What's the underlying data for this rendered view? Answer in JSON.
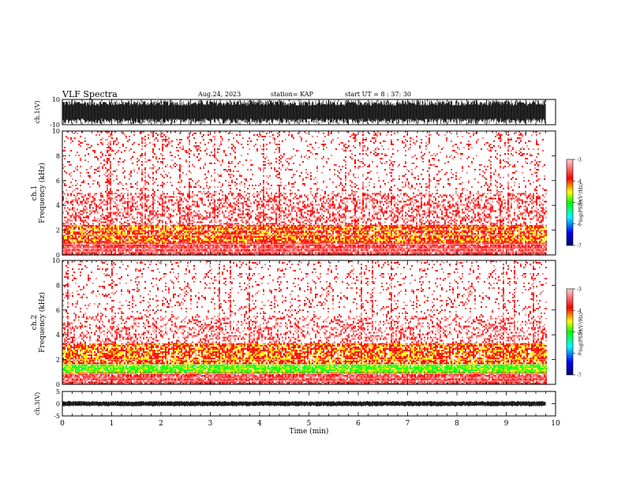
{
  "header": {
    "title": "VLF Spectra",
    "date": "Aug.24, 2023",
    "station": "station= KAP",
    "start": "start  UT =  8 : 37: 30"
  },
  "chart_data": [
    {
      "type": "line",
      "panel": "ch1-waveform",
      "ylabel": "ch.1(V)",
      "ylim": [
        -10,
        10
      ],
      "yticks": [
        "10",
        "-10"
      ],
      "xlim": [
        0,
        10
      ],
      "data_end_min": 9.8,
      "style": "dense black waveform filling most of the range"
    },
    {
      "type": "heatmap",
      "panel": "ch1-spectrogram",
      "ylabel": "ch.1\nFrequency  (kHz)",
      "ylim": [
        0,
        10
      ],
      "yticks": [
        "0",
        "2",
        "4",
        "6",
        "8",
        "10"
      ],
      "xlim": [
        0,
        10
      ],
      "data_end_min": 9.8,
      "bands": [
        {
          "from": 0.0,
          "to": 1.1,
          "level": "red",
          "density": 0.9
        },
        {
          "from": 1.1,
          "to": 2.4,
          "level": "red-yellow",
          "density": 0.85
        },
        {
          "from": 2.4,
          "to": 5.0,
          "level": "red",
          "density": 0.35
        },
        {
          "from": 5.0,
          "to": 10.0,
          "level": "red",
          "density": 0.12
        }
      ],
      "colorbar": {
        "label": "log(PSD)(V²/Hz)",
        "min": -7,
        "max": -3,
        "ticks": [
          "-3",
          "-4",
          "-5",
          "-6",
          "-7"
        ]
      }
    },
    {
      "type": "heatmap",
      "panel": "ch2-spectrogram",
      "ylabel": "ch.2\nFrequency  (kHz)",
      "ylim": [
        0,
        10
      ],
      "yticks": [
        "0",
        "2",
        "4",
        "6",
        "8",
        "10"
      ],
      "xlim": [
        0,
        10
      ],
      "data_end_min": 9.8,
      "bands": [
        {
          "from": 0.0,
          "to": 1.0,
          "level": "red",
          "density": 0.9
        },
        {
          "from": 1.0,
          "to": 1.7,
          "level": "green",
          "density": 0.95
        },
        {
          "from": 1.7,
          "to": 3.3,
          "level": "red-yellow",
          "density": 0.8
        },
        {
          "from": 3.3,
          "to": 5.5,
          "level": "red",
          "density": 0.3
        },
        {
          "from": 5.5,
          "to": 10.0,
          "level": "red",
          "density": 0.12
        }
      ],
      "colorbar": {
        "label": "log(PSD)(V²/Hz)",
        "min": -7,
        "max": -3,
        "ticks": [
          "-3",
          "-4",
          "-5",
          "-6",
          "-7"
        ]
      }
    },
    {
      "type": "line",
      "panel": "ch3-waveform",
      "ylabel": "ch.3(V)",
      "ylim": [
        -5,
        5
      ],
      "yticks": [
        "5",
        "0",
        "-5"
      ],
      "xlim": [
        0,
        10
      ],
      "data_end_min": 9.8,
      "level": 0,
      "xlabel": "Time  (min)",
      "xticks": [
        "0",
        "1",
        "2",
        "3",
        "4",
        "5",
        "6",
        "7",
        "8",
        "9",
        "10"
      ]
    }
  ],
  "colors": {
    "trace": "#000000",
    "cmap": [
      "#000066",
      "#0000ff",
      "#00ffff",
      "#00ff00",
      "#ffff00",
      "#ff0000",
      "#ff9999"
    ]
  }
}
